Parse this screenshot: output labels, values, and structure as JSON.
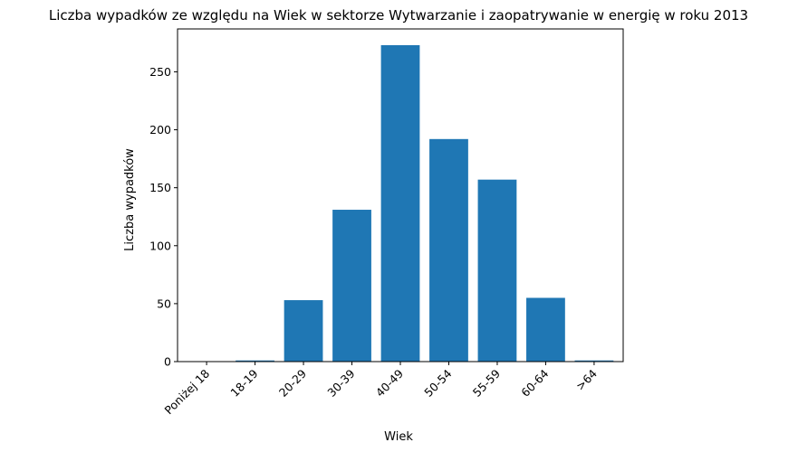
{
  "chart_data": {
    "type": "bar",
    "title": "Liczba wypadków ze względu na Wiek w sektorze Wytwarzanie i zaopatrywanie w energię w roku 2013",
    "xlabel": "Wiek",
    "ylabel": "Liczba wypadków",
    "categories": [
      "Poniżej 18",
      "18-19",
      "20-29",
      "30-39",
      "40-49",
      "50-54",
      "55-59",
      "60-64",
      ">64"
    ],
    "values": [
      0,
      1,
      53,
      131,
      273,
      192,
      157,
      55,
      1
    ],
    "ylim": [
      0,
      287
    ],
    "yticks": [
      0,
      50,
      100,
      150,
      200,
      250
    ],
    "bar_color": "#1f77b4",
    "grid": false,
    "legend": "none"
  }
}
